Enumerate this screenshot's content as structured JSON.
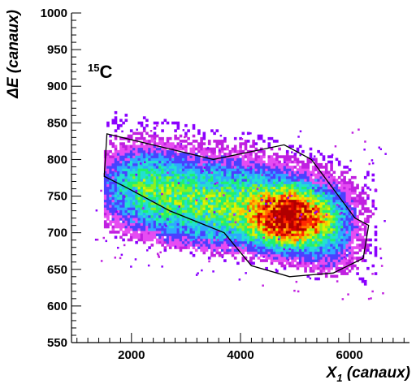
{
  "chart_data": {
    "type": "heatmap",
    "title": "",
    "xlabel": "X",
    "xlabel_subscript": "1",
    "xlabel_suffix": " (canaux)",
    "ylabel": "ΔE (canaux)",
    "xlim": [
      900,
      7100
    ],
    "ylim": [
      550,
      1000
    ],
    "x_ticks": [
      2000,
      4000,
      6000
    ],
    "y_ticks": [
      550,
      600,
      650,
      700,
      750,
      800,
      850,
      900,
      950,
      1000
    ],
    "grid": false,
    "legend": "none",
    "annotation": {
      "mass_number": "15",
      "element": "C",
      "x": 1250,
      "y": 925
    },
    "cut_polygon": [
      [
        1550,
        835
      ],
      [
        3500,
        800
      ],
      [
        4800,
        820
      ],
      [
        5300,
        800
      ],
      [
        6100,
        720
      ],
      [
        6350,
        710
      ],
      [
        6250,
        665
      ],
      [
        5700,
        645
      ],
      [
        4900,
        640
      ],
      [
        4200,
        655
      ],
      [
        3700,
        700
      ],
      [
        2700,
        730
      ],
      [
        1900,
        762
      ],
      [
        1500,
        777
      ],
      [
        1550,
        835
      ]
    ],
    "distribution": {
      "description_peak": [
        4850,
        722
      ],
      "components": [
        {
          "cx": 4850,
          "cy": 722,
          "sx": 430,
          "sy": 24,
          "weight": 1.0
        },
        {
          "cx": 3600,
          "cy": 742,
          "sx": 1000,
          "sy": 38,
          "weight": 0.42
        },
        {
          "cx": 2200,
          "cy": 770,
          "sx": 520,
          "sy": 32,
          "weight": 0.28
        },
        {
          "cx": 5600,
          "cy": 705,
          "sx": 380,
          "sy": 38,
          "weight": 0.22
        }
      ],
      "colors": [
        "#8b00ff",
        "#c020e0",
        "#e64cf2",
        "#4a40ff",
        "#2fa8ff",
        "#22e0d0",
        "#20f070",
        "#8cf020",
        "#e0f000",
        "#ffc000",
        "#ff7000",
        "#ff2a00",
        "#d40000",
        "#b00000"
      ]
    }
  }
}
